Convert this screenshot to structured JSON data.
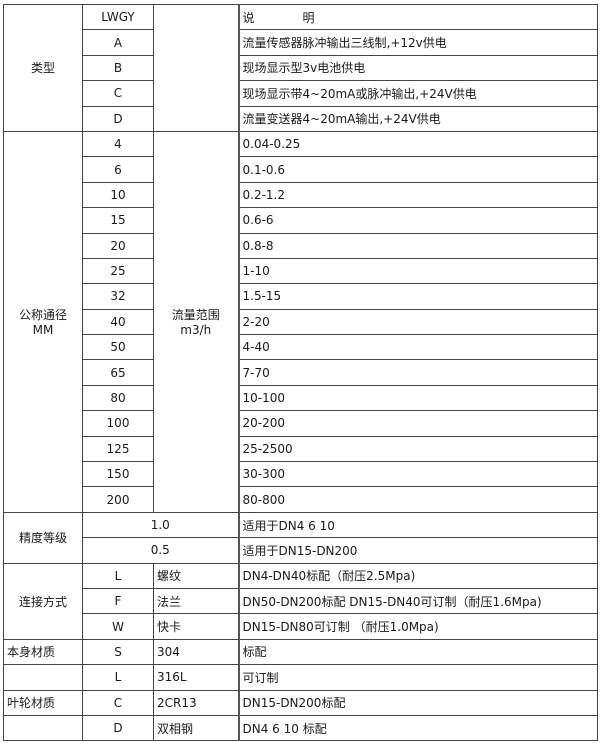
{
  "header": {
    "code": "LWGY",
    "desc": "说　　　　明"
  },
  "type": {
    "label": "类型",
    "rows": [
      {
        "code": "A",
        "desc": "流量传感器脉冲输出三线制,+12v供电"
      },
      {
        "code": "B",
        "desc": "现场显示型3v电池供电"
      },
      {
        "code": "C",
        "desc": "现场显示带4~20mA或脉冲输出,+24V供电"
      },
      {
        "code": "D",
        "desc": "流量变送器4~20mA输出,+24V供电"
      }
    ]
  },
  "diameter": {
    "label": "公称通径",
    "unit": "MM",
    "flow_label": "流量范围",
    "flow_unit": "m3/h",
    "rows": [
      {
        "dn": "4",
        "range": "0.04-0.25"
      },
      {
        "dn": "6",
        "range": "0.1-0.6"
      },
      {
        "dn": "10",
        "range": "0.2-1.2"
      },
      {
        "dn": "15",
        "range": "0.6-6"
      },
      {
        "dn": "20",
        "range": "0.8-8"
      },
      {
        "dn": "25",
        "range": "1-10"
      },
      {
        "dn": "32",
        "range": "1.5-15"
      },
      {
        "dn": "40",
        "range": "2-20"
      },
      {
        "dn": "50",
        "range": "4-40"
      },
      {
        "dn": "65",
        "range": "7-70"
      },
      {
        "dn": "80",
        "range": "10-100"
      },
      {
        "dn": "100",
        "range": "20-200"
      },
      {
        "dn": "125",
        "range": "25-2500"
      },
      {
        "dn": "150",
        "range": "30-300"
      },
      {
        "dn": "200",
        "range": "80-800"
      }
    ]
  },
  "accuracy": {
    "label": "精度等级",
    "rows": [
      {
        "grade": "1.0",
        "desc": "适用于DN4  6  10"
      },
      {
        "grade": "0.5",
        "desc": "适用于DN15-DN200"
      }
    ]
  },
  "connection": {
    "label": "连接方式",
    "rows": [
      {
        "code": "L",
        "name": "螺纹",
        "desc": "DN4-DN40标配（耐压2.5Mpa)"
      },
      {
        "code": "F",
        "name": "法兰",
        "desc": "DN50-DN200标配 DN15-DN40可订制（耐压1.6Mpa)"
      },
      {
        "code": "W",
        "name": "快卡",
        "desc": "DN15-DN80可订制 （耐压1.0Mpa)"
      }
    ]
  },
  "body_material": {
    "label": "本身材质",
    "rows": [
      {
        "code": "S",
        "name": "304",
        "desc": "标配"
      },
      {
        "code": "L",
        "name": "316L",
        "desc": "可订制"
      }
    ]
  },
  "impeller_material": {
    "label": "叶轮材质",
    "rows": [
      {
        "code": "C",
        "name": "2CR13",
        "desc": "DN15-DN200标配"
      },
      {
        "code": "D",
        "name": "双相钢",
        "desc": "DN4 6 10 标配"
      }
    ]
  }
}
